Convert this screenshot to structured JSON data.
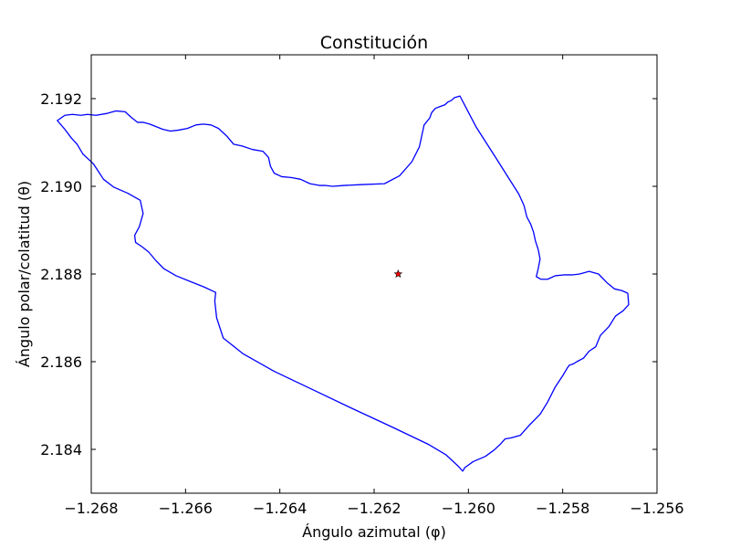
{
  "chart_data": {
    "type": "line",
    "title": "Constitución",
    "xlabel": "Ángulo azimutal (φ)",
    "ylabel": "Ángulo polar/colatitud (θ)",
    "xlim": [
      -1.268,
      -1.256
    ],
    "ylim": [
      2.193,
      2.183
    ],
    "y_inverted": true,
    "grid": false,
    "x_ticks": [
      -1.268,
      -1.266,
      -1.264,
      -1.262,
      -1.26,
      -1.258,
      -1.256
    ],
    "x_tick_labels": [
      "−1.268",
      "−1.266",
      "−1.264",
      "−1.262",
      "−1.260",
      "−1.258",
      "−1.256"
    ],
    "y_ticks": [
      2.184,
      2.186,
      2.188,
      2.19,
      2.192
    ],
    "y_tick_labels": [
      "2.184",
      "2.186",
      "2.188",
      "2.190",
      "2.192"
    ],
    "series": [
      {
        "color": "#0000ff",
        "x": [
          -1.26012,
          -1.26022,
          -1.26048,
          -1.26086,
          -1.2616,
          -1.26248,
          -1.2633,
          -1.26412,
          -1.26478,
          -1.2652,
          -1.26534,
          -1.26538,
          -1.26536,
          -1.2656,
          -1.26588,
          -1.2662,
          -1.26646,
          -1.26664,
          -1.26678,
          -1.26692,
          -1.26706,
          -1.26708,
          -1.26698,
          -1.2669,
          -1.26696,
          -1.26722,
          -1.26752,
          -1.26774,
          -1.26786,
          -1.26796,
          -1.26818,
          -1.2683,
          -1.26842,
          -1.26856,
          -1.26872,
          -1.26856,
          -1.2684,
          -1.26822,
          -1.26808,
          -1.2679,
          -1.26768,
          -1.26748,
          -1.26728,
          -1.26716,
          -1.26702,
          -1.2669,
          -1.26676,
          -1.26662,
          -1.26648,
          -1.26632,
          -1.26616,
          -1.26596,
          -1.26578,
          -1.26562,
          -1.26546,
          -1.2653,
          -1.26512,
          -1.26498,
          -1.2648,
          -1.26458,
          -1.26436,
          -1.26424,
          -1.2642,
          -1.26412,
          -1.26396,
          -1.26376,
          -1.26356,
          -1.26336,
          -1.26316,
          -1.26304,
          -1.26288,
          -1.26264,
          -1.26224,
          -1.26178,
          -1.26146,
          -1.2612,
          -1.26104,
          -1.26098,
          -1.26094,
          -1.26082,
          -1.26078,
          -1.2607,
          -1.2606,
          -1.2605,
          -1.26044,
          -1.26036,
          -1.2603,
          -1.26018,
          -1.25984,
          -1.2594,
          -1.25893,
          -1.25882,
          -1.25876,
          -1.25868,
          -1.25862,
          -1.25858,
          -1.25852,
          -1.25848,
          -1.25852,
          -1.25856,
          -1.25846,
          -1.25832,
          -1.25816,
          -1.25798,
          -1.2578,
          -1.25764,
          -1.25744,
          -1.25724,
          -1.25706,
          -1.2569,
          -1.25674,
          -1.25662,
          -1.2566,
          -1.25672,
          -1.25688,
          -1.25702,
          -1.2572,
          -1.2573,
          -1.25744,
          -1.25756,
          -1.2577,
          -1.25776,
          -1.2578,
          -1.25786,
          -1.2579,
          -1.258,
          -1.25816,
          -1.25832,
          -1.25848,
          -1.2587,
          -1.2589,
          -1.2591,
          -1.25922,
          -1.25932,
          -1.25946,
          -1.25964,
          -1.2599,
          -1.26008,
          -1.26012
        ],
        "y": [
          2.1835,
          2.18362,
          2.18388,
          2.18412,
          2.1845,
          2.18494,
          2.18536,
          2.18578,
          2.18618,
          2.18654,
          2.187,
          2.18738,
          2.18758,
          2.1877,
          2.18782,
          2.18796,
          2.18812,
          2.18832,
          2.1885,
          2.18862,
          2.18872,
          2.18888,
          2.18908,
          2.18938,
          2.18968,
          2.18984,
          2.18998,
          2.19016,
          2.19036,
          2.19052,
          2.19074,
          2.19096,
          2.1911,
          2.1913,
          2.1915,
          2.19162,
          2.19164,
          2.19162,
          2.19164,
          2.19162,
          2.19166,
          2.19172,
          2.1917,
          2.19158,
          2.19146,
          2.19146,
          2.19142,
          2.19136,
          2.1913,
          2.19126,
          2.19128,
          2.19132,
          2.1914,
          2.19142,
          2.1914,
          2.19132,
          2.19114,
          2.19096,
          2.19092,
          2.19084,
          2.1908,
          2.19066,
          2.19046,
          2.1903,
          2.19022,
          2.1902,
          2.19016,
          2.19006,
          2.19002,
          2.19002,
          2.19,
          2.19002,
          2.19004,
          2.19006,
          2.19024,
          2.19056,
          2.1909,
          2.1912,
          2.1914,
          2.19156,
          2.19168,
          2.19178,
          2.19182,
          2.19186,
          2.19192,
          2.19196,
          2.19202,
          2.19206,
          2.19136,
          2.19062,
          2.18982,
          2.18956,
          2.1893,
          2.18914,
          2.18896,
          2.18876,
          2.18856,
          2.18834,
          2.18812,
          2.18794,
          2.18788,
          2.18788,
          2.18796,
          2.18798,
          2.18798,
          2.188,
          2.18806,
          2.188,
          2.1878,
          2.18766,
          2.18762,
          2.18756,
          2.1873,
          2.18716,
          2.18704,
          2.1868,
          2.1866,
          2.18634,
          2.18624,
          2.18608,
          2.186,
          2.18596,
          2.18594,
          2.18592,
          2.18586,
          2.18568,
          2.18542,
          2.18508,
          2.1848,
          2.18456,
          2.18432,
          2.18426,
          2.18424,
          2.18412,
          2.18398,
          2.18384,
          2.18372,
          2.18358,
          2.1835
        ]
      }
    ],
    "marker": {
      "x": -1.26149,
      "y": 2.188,
      "symbol": "star",
      "face_color": "#ff0000",
      "edge_color": "#000000"
    }
  }
}
